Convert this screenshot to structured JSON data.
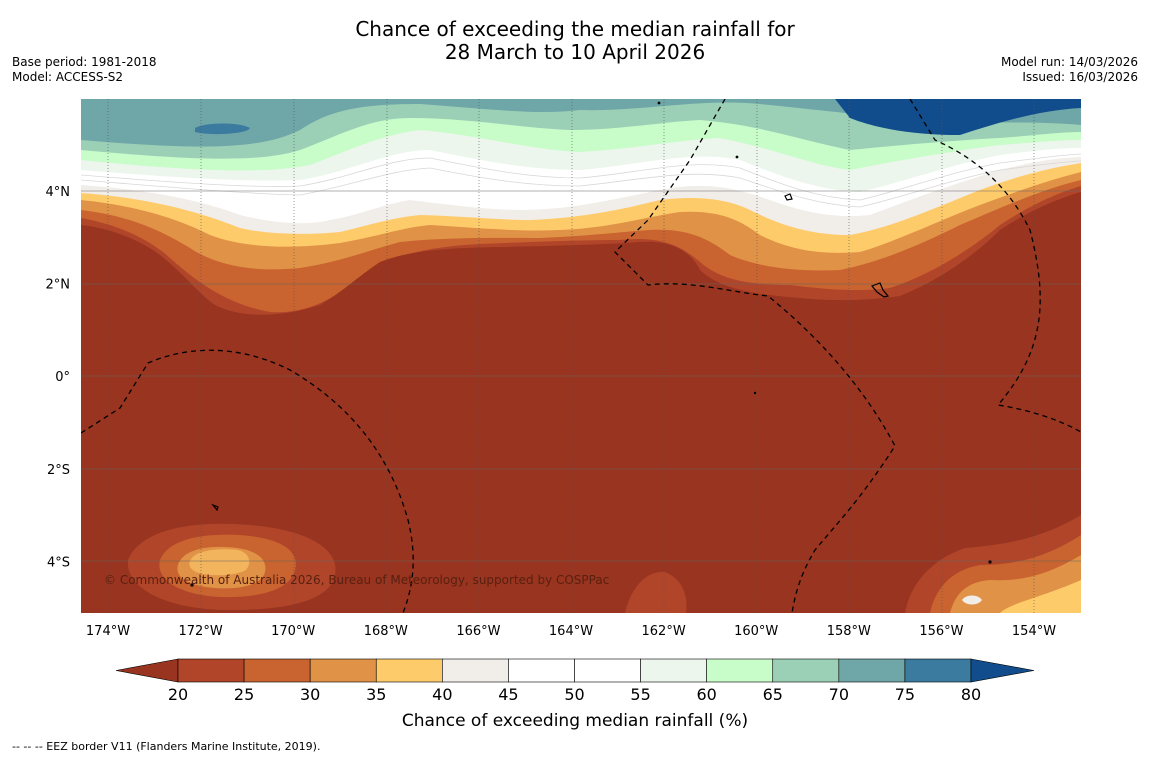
{
  "title": {
    "line1": "Chance of exceeding the median rainfall for",
    "line2": "28 March to 10 April 2026"
  },
  "meta_left": {
    "base_period": "Base period: 1981-2018",
    "model": "Model: ACCESS-S2"
  },
  "meta_right": {
    "model_run": "Model run: 14/03/2026",
    "issued": "Issued: 16/03/2026"
  },
  "map": {
    "lon_ticks": [
      "174°W",
      "172°W",
      "170°W",
      "168°W",
      "166°W",
      "164°W",
      "162°W",
      "160°W",
      "158°W",
      "156°W",
      "154°W"
    ],
    "lat_ticks": [
      "4°N",
      "2°N",
      "0°",
      "2°S",
      "4°S"
    ],
    "copyright": "© Commonwealth of Australia 2026, Bureau of Meteorology, supported by COSPPac"
  },
  "colorbar": {
    "ticks": [
      "20",
      "25",
      "30",
      "35",
      "40",
      "45",
      "50",
      "55",
      "60",
      "65",
      "70",
      "75",
      "80"
    ],
    "colors": [
      "#98341f",
      "#b0452a",
      "#c9632f",
      "#e09246",
      "#fecb6a",
      "#f1ede8",
      "#ffffff",
      "#ffffff",
      "#ecf6ec",
      "#c8fcc9",
      "#9bd0b6",
      "#6fa6a7",
      "#3b7ba0",
      "#114d8c"
    ],
    "label": "Chance of exceeding median rainfall (%)"
  },
  "footer": {
    "legend": "--  --  -- EEZ border V11 (Flanders Marine Institute, 2019)."
  }
}
